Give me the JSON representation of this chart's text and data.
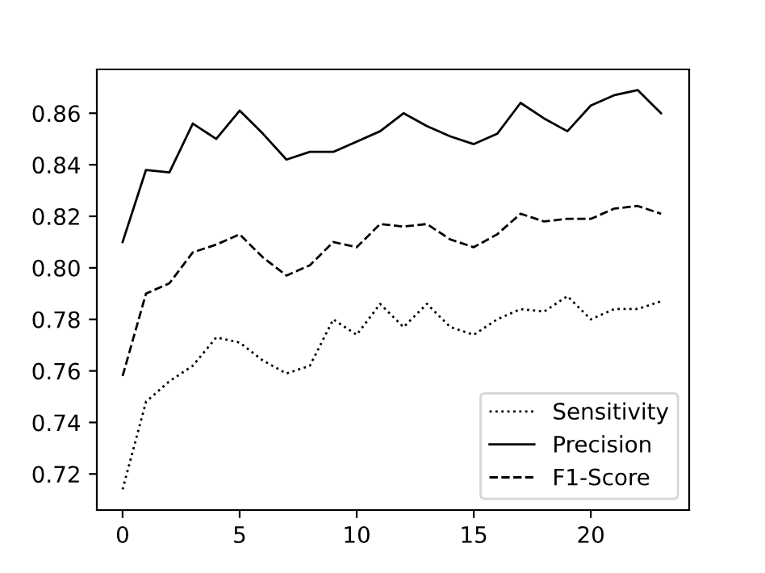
{
  "chart_data": {
    "type": "line",
    "x": [
      0,
      1,
      2,
      3,
      4,
      5,
      6,
      7,
      8,
      9,
      10,
      11,
      12,
      13,
      14,
      15,
      16,
      17,
      18,
      19,
      20,
      21,
      22,
      23
    ],
    "series": [
      {
        "name": "Sensitivity",
        "color": "#000000",
        "line_style": "dotted",
        "values": [
          0.714,
          0.748,
          0.756,
          0.762,
          0.773,
          0.771,
          0.764,
          0.759,
          0.762,
          0.78,
          0.774,
          0.786,
          0.777,
          0.786,
          0.777,
          0.774,
          0.78,
          0.784,
          0.783,
          0.789,
          0.78,
          0.784,
          0.784,
          0.787
        ]
      },
      {
        "name": "Precision",
        "color": "#000000",
        "line_style": "solid",
        "values": [
          0.81,
          0.838,
          0.837,
          0.856,
          0.85,
          0.861,
          0.852,
          0.842,
          0.845,
          0.845,
          0.849,
          0.853,
          0.86,
          0.855,
          0.851,
          0.848,
          0.852,
          0.864,
          0.858,
          0.853,
          0.863,
          0.867,
          0.869,
          0.86
        ]
      },
      {
        "name": "F1-Score",
        "color": "#000000",
        "line_style": "dashed",
        "values": [
          0.758,
          0.79,
          0.794,
          0.806,
          0.809,
          0.813,
          0.804,
          0.797,
          0.801,
          0.81,
          0.808,
          0.817,
          0.816,
          0.817,
          0.811,
          0.808,
          0.813,
          0.821,
          0.818,
          0.819,
          0.819,
          0.823,
          0.824,
          0.821
        ]
      }
    ],
    "xlim": [
      -1.1,
      24.2
    ],
    "ylim": [
      0.706,
      0.877
    ],
    "xticks": [
      0,
      5,
      10,
      15,
      20
    ],
    "yticks": [
      {
        "value": 0.72,
        "label": "0.72"
      },
      {
        "value": 0.74,
        "label": "0.74"
      },
      {
        "value": 0.76,
        "label": "0.76"
      },
      {
        "value": 0.78,
        "label": "0.78"
      },
      {
        "value": 0.8,
        "label": "0.80"
      },
      {
        "value": 0.82,
        "label": "0.82"
      },
      {
        "value": 0.84,
        "label": "0.84"
      },
      {
        "value": 0.86,
        "label": "0.86"
      }
    ],
    "legend": "bottom right",
    "grid": false
  }
}
